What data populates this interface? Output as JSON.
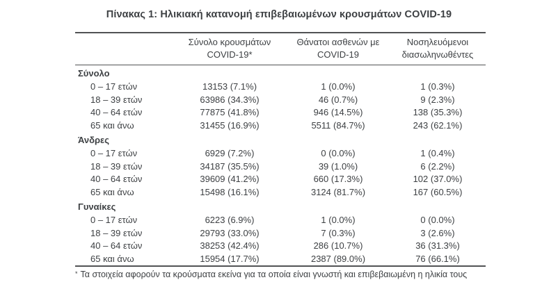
{
  "title": "Πίνακας 1: Ηλικιακή κατανομή επιβεβαιωμένων κρουσμάτων COVID-19",
  "table": {
    "columns": [
      {
        "line1": "Σύνολο κρουσμάτων",
        "line2": "COVID-19*"
      },
      {
        "line1": "Θάνατοι ασθενών με",
        "line2": "COVID-19"
      },
      {
        "line1": "Νοσηλευόμενοι",
        "line2": "διασωληνωθέντες"
      }
    ],
    "sections": [
      {
        "label": "Σύνολο",
        "rows": [
          {
            "age": "0 – 17 ετών",
            "cases": "13153 (7.1%)",
            "deaths": "1 (0.0%)",
            "intubated": "1 (0.3%)"
          },
          {
            "age": "18 – 39 ετών",
            "cases": "63986 (34.3%)",
            "deaths": "46 (0.7%)",
            "intubated": "9 (2.3%)"
          },
          {
            "age": "40 – 64 ετών",
            "cases": "77875 (41.8%)",
            "deaths": "946 (14.5%)",
            "intubated": "138 (35.3%)"
          },
          {
            "age": "65 και άνω",
            "cases": "31455 (16.9%)",
            "deaths": "5511 (84.7%)",
            "intubated": "243 (62.1%)"
          }
        ]
      },
      {
        "label": "Άνδρες",
        "rows": [
          {
            "age": "0 – 17 ετών",
            "cases": "6929 (7.2%)",
            "deaths": "0 (0.0%)",
            "intubated": "1 (0.4%)"
          },
          {
            "age": "18 – 39 ετών",
            "cases": "34187 (35.5%)",
            "deaths": "39 (1.0%)",
            "intubated": "6 (2.2%)"
          },
          {
            "age": "40 – 64 ετών",
            "cases": "39609 (41.2%)",
            "deaths": "660 (17.3%)",
            "intubated": "102 (37.0%)"
          },
          {
            "age": "65 και άνω",
            "cases": "15498 (16.1%)",
            "deaths": "3124 (81.7%)",
            "intubated": "167 (60.5%)"
          }
        ]
      },
      {
        "label": "Γυναίκες",
        "rows": [
          {
            "age": "0 – 17 ετών",
            "cases": "6223 (6.9%)",
            "deaths": "1 (0.0%)",
            "intubated": "0 (0.0%)"
          },
          {
            "age": "18 – 39 ετών",
            "cases": "29793 (33.0%)",
            "deaths": "7 (0.3%)",
            "intubated": "3 (2.6%)"
          },
          {
            "age": "40 – 64 ετών",
            "cases": "38253 (42.4%)",
            "deaths": "286 (10.7%)",
            "intubated": "36 (31.3%)"
          },
          {
            "age": "65 και άνω",
            "cases": "15954 (17.7%)",
            "deaths": "2387 (89.0%)",
            "intubated": "76 (66.1%)"
          }
        ]
      }
    ]
  },
  "footnote": {
    "marker": "*",
    "text": "Τα στοιχεία αφορούν τα κρούσματα εκείνα για τα οποία είναι γνωστή και επιβεβαιωμένη η ηλικία τους"
  },
  "colors": {
    "text": "#3d4043",
    "line": "#515254",
    "background": "#ffffff"
  }
}
